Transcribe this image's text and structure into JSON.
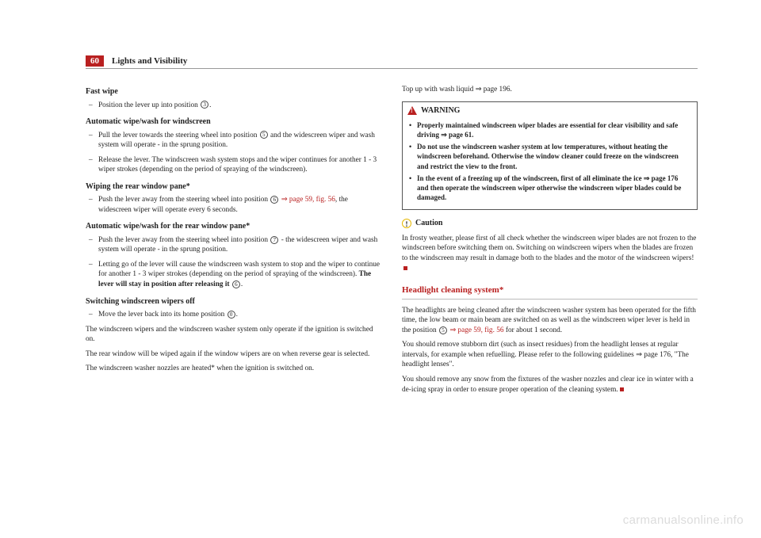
{
  "header": {
    "page_number": "60",
    "chapter": "Lights and Visibility"
  },
  "left": {
    "h1": "Fast wipe",
    "i1": "Position the lever up into position",
    "c1": "3",
    "i1b": ".",
    "h2": "Automatic wipe/wash for windscreen",
    "i2a": "Pull the lever towards the steering wheel into position",
    "c2": "5",
    "i2b": "and the widescreen wiper and wash system will operate - in the sprung position.",
    "i3": "Release the lever. The windscreen wash system stops and the wiper continues for another 1 - 3 wiper strokes (depending on the period of spraying of the windscreen).",
    "h3": "Wiping the rear window pane*",
    "i4a": "Push the lever away from the steering wheel into position",
    "c3": "6",
    "ref1": "⇒ page 59, fig. 56",
    "i4b": ", the widescreen wiper will operate every 6 seconds.",
    "h4": "Automatic wipe/wash for the rear window pane*",
    "i5a": "Push the lever away from the steering wheel into position",
    "c4": "7",
    "i5b": "- the widescreen wiper and wash system will operate - in the sprung position.",
    "i6a": "Letting go of the lever will cause the windscreen wash system to stop and the wiper to continue for another 1 - 3 wiper strokes (depending on the period of spraying of the windscreen). ",
    "i6bold": "The lever will stay in position after releasing it",
    "c5": "6",
    "i6c": ".",
    "h5": "Switching windscreen wipers off",
    "i7a": "Move the lever back into its home position",
    "c6": "0",
    "i7b": ".",
    "n1": "The windscreen wipers and the windscreen washer system only operate if the ignition is switched on.",
    "n2": "The rear window will be wiped again if the window wipers are on when reverse gear is selected.",
    "n3": "The windscreen washer nozzles are heated* when the ignition is switched on."
  },
  "right": {
    "top": "Top up with wash liquid ⇒ page 196.",
    "warn_title": "WARNING",
    "w1a": "Properly maintained windscreen wiper blades are essential for clear visibility and safe driving ",
    "w1b": "⇒ page 61.",
    "w2": "Do not use the windscreen washer system at low temperatures, without heating the windscreen beforehand. Otherwise the window cleaner could freeze on the windscreen and restrict the view to the front.",
    "w3a": "In the event of a freezing up of the windscreen, first of all eliminate the ice ",
    "w3b": "⇒ page 176 and then operate the windscreen wiper otherwise the windscreen wiper blades could be damaged.",
    "caution_title": "Caution",
    "caution_body": "In frosty weather, please first of all check whether the windscreen wiper blades are not frozen to the windscreen before switching them on. Switching on windscreen wipers when the blades are frozen to the windscreen may result in damage both to the blades and the motor of the windscreen wipers!",
    "sec_title": "Headlight cleaning system*",
    "p1a": "The headlights are being cleaned after the windscreen washer system has been operated for the fifth time, the low beam or main beam are switched on as well as the windscreen wiper lever is held in the position",
    "pc1": "5",
    "pref": "⇒ page 59, fig. 56",
    "p1b": "for about 1 second.",
    "p2": "You should remove stubborn dirt (such as insect residues) from the headlight lenses at regular intervals, for example when refuelling. Please refer to the following guidelines ⇒ page 176, \"The headlight lenses\".",
    "p3": "You should remove any snow from the fixtures of the washer nozzles and clear ice in winter with a de-icing spray in order to ensure proper operation of the cleaning system."
  },
  "watermark": "carmanualsonline.info"
}
